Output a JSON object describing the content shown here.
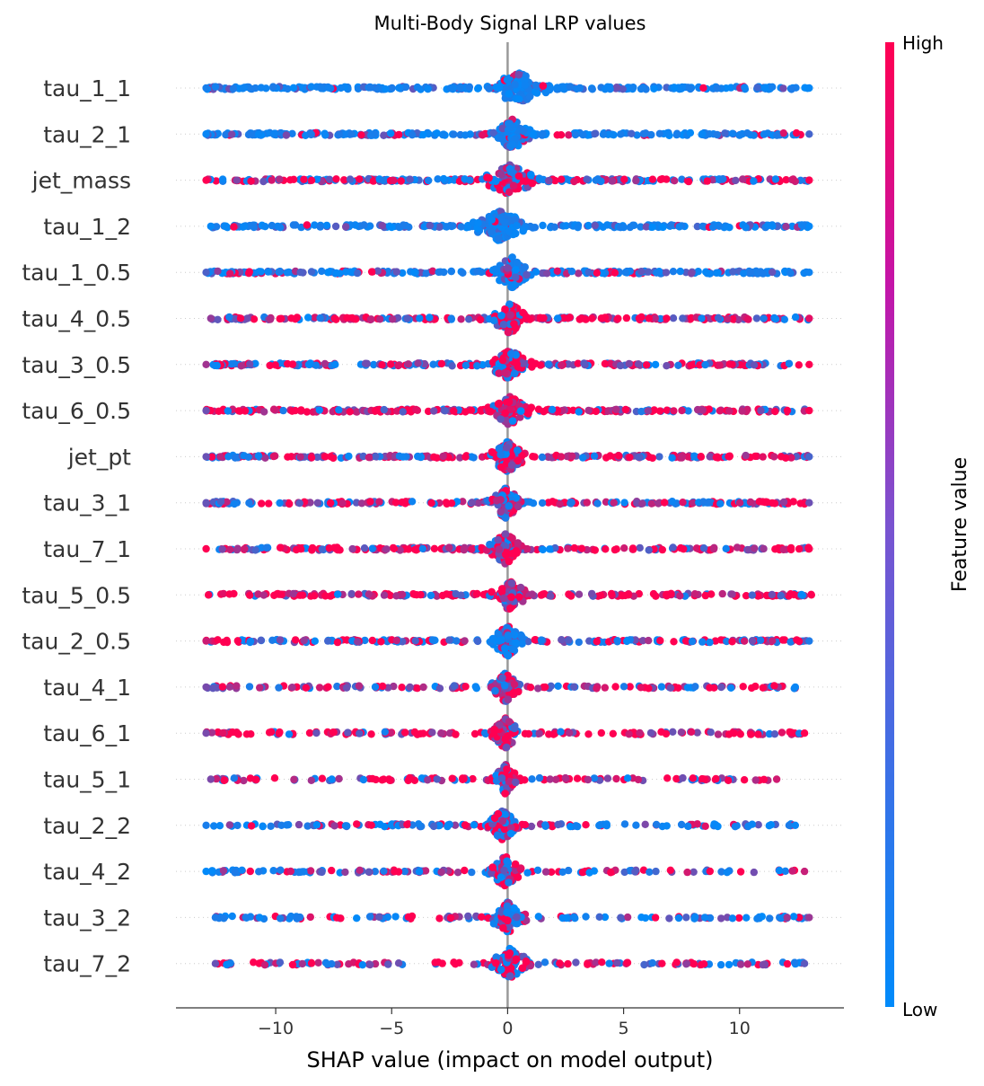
{
  "chart_data": {
    "type": "scatter",
    "subtype": "shap-beeswarm",
    "title": "Multi-Body Signal LRP values",
    "xlabel": "SHAP value (impact on model output)",
    "ylabel": "",
    "xlim": [
      -14.3,
      14.5
    ],
    "xticks": [
      -10,
      -5,
      0,
      5,
      10
    ],
    "xtick_labels": [
      "−10",
      "−5",
      "0",
      "5",
      "10"
    ],
    "grid": false,
    "legend": "colorbar-right",
    "colorbar": {
      "label": "Feature value",
      "high_label": "High",
      "low_label": "Low",
      "high_color": "#ff0052",
      "low_color": "#008bfb"
    },
    "features": [
      {
        "name": "tau_1_1",
        "min": -13.0,
        "max": 13.0,
        "center": 0.5,
        "bulge": 1.8,
        "red_share": 0.05,
        "density": 1.0
      },
      {
        "name": "tau_2_1",
        "min": -13.0,
        "max": 13.0,
        "center": 0.2,
        "bulge": 1.2,
        "red_share": 0.12,
        "density": 0.9
      },
      {
        "name": "jet_mass",
        "min": -13.0,
        "max": 13.0,
        "center": 0.1,
        "bulge": 1.5,
        "red_share": 0.45,
        "density": 0.95
      },
      {
        "name": "tau_1_2",
        "min": -12.8,
        "max": 13.0,
        "center": -0.3,
        "bulge": 1.6,
        "red_share": 0.05,
        "density": 0.85
      },
      {
        "name": "tau_1_0.5",
        "min": -13.0,
        "max": 13.0,
        "center": 0.2,
        "bulge": 1.3,
        "red_share": 0.15,
        "density": 0.9
      },
      {
        "name": "tau_4_0.5",
        "min": -12.8,
        "max": 13.0,
        "center": 0.1,
        "bulge": 1.0,
        "red_share": 0.7,
        "density": 0.85
      },
      {
        "name": "tau_3_0.5",
        "min": -13.0,
        "max": 13.0,
        "center": 0.1,
        "bulge": 1.2,
        "red_share": 0.5,
        "density": 0.85
      },
      {
        "name": "tau_6_0.5",
        "min": -13.0,
        "max": 13.0,
        "center": 0.1,
        "bulge": 1.2,
        "red_share": 0.7,
        "density": 0.85
      },
      {
        "name": "jet_pt",
        "min": -13.0,
        "max": 13.0,
        "center": 0.0,
        "bulge": 1.0,
        "red_share": 0.6,
        "density": 0.85
      },
      {
        "name": "tau_3_1",
        "min": -13.0,
        "max": 13.0,
        "center": -0.1,
        "bulge": 0.9,
        "red_share": 0.5,
        "density": 0.8
      },
      {
        "name": "tau_7_1",
        "min": -13.0,
        "max": 13.0,
        "center": -0.1,
        "bulge": 1.0,
        "red_share": 0.7,
        "density": 0.8
      },
      {
        "name": "tau_5_0.5",
        "min": -12.9,
        "max": 13.1,
        "center": 0.1,
        "bulge": 1.0,
        "red_share": 0.75,
        "density": 0.75
      },
      {
        "name": "tau_2_0.5",
        "min": -13.0,
        "max": 13.0,
        "center": 0.0,
        "bulge": 1.0,
        "red_share": 0.35,
        "density": 0.8
      },
      {
        "name": "tau_4_1",
        "min": -13.0,
        "max": 12.4,
        "center": -0.1,
        "bulge": 0.8,
        "red_share": 0.6,
        "density": 0.55
      },
      {
        "name": "tau_6_1",
        "min": -13.0,
        "max": 12.8,
        "center": -0.1,
        "bulge": 0.8,
        "red_share": 0.75,
        "density": 0.55
      },
      {
        "name": "tau_5_1",
        "min": -12.8,
        "max": 11.6,
        "center": -0.1,
        "bulge": 0.7,
        "red_share": 0.6,
        "density": 0.5
      },
      {
        "name": "tau_2_2",
        "min": -13.0,
        "max": 12.4,
        "center": -0.2,
        "bulge": 0.9,
        "red_share": 0.3,
        "density": 0.55
      },
      {
        "name": "tau_4_2",
        "min": -13.0,
        "max": 12.8,
        "center": -0.1,
        "bulge": 0.9,
        "red_share": 0.5,
        "density": 0.5
      },
      {
        "name": "tau_3_2",
        "min": -12.6,
        "max": 13.0,
        "center": 0.0,
        "bulge": 1.0,
        "red_share": 0.3,
        "density": 0.5
      },
      {
        "name": "tau_7_2",
        "min": -12.6,
        "max": 12.8,
        "center": 0.1,
        "bulge": 1.1,
        "red_share": 0.55,
        "density": 0.5
      }
    ]
  }
}
